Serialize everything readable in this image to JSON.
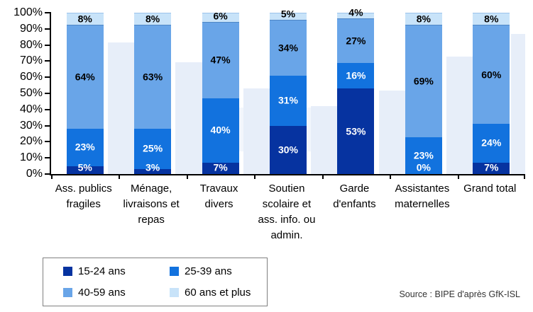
{
  "chart_data": {
    "type": "bar",
    "subtype": "stacked-100-percent",
    "title": "",
    "xlabel": "",
    "ylabel": "",
    "grid": false,
    "legend_position": "bottom-left",
    "value_suffix": "%",
    "categories": [
      "Ass. publics fragiles",
      "Ménage, livraisons et repas",
      "Travaux divers",
      "Soutien scolaire et ass. info. ou admin.",
      "Garde d'enfants",
      "Assistantes maternelles",
      "Grand total"
    ],
    "series": [
      {
        "name": "15-24 ans",
        "color": "#0633A0",
        "label_color": "#ffffff",
        "values": [
          5,
          3,
          7,
          30,
          53,
          0,
          7
        ]
      },
      {
        "name": "25-39 ans",
        "color": "#1272DE",
        "label_color": "#ffffff",
        "values": [
          23,
          25,
          40,
          31,
          16,
          23,
          24
        ]
      },
      {
        "name": "40-59 ans",
        "color": "#69A5E8",
        "label_color": "#000000",
        "values": [
          64,
          63,
          47,
          34,
          27,
          69,
          60
        ]
      },
      {
        "name": "60 ans et plus",
        "color": "#C8E3F9",
        "label_color": "#000000",
        "values": [
          8,
          8,
          6,
          5,
          4,
          8,
          8
        ]
      }
    ],
    "y_axis": {
      "min": 0,
      "max": 100,
      "ticks": [
        "0%",
        "10%",
        "20%",
        "30%",
        "40%",
        "50%",
        "60%",
        "70%",
        "80%",
        "90%",
        "100%"
      ]
    }
  },
  "source_label": "Source : BIPE d'après GfK-ISL"
}
